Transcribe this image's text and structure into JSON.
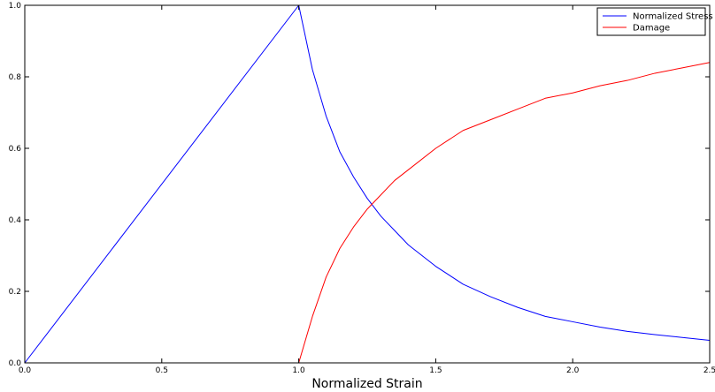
{
  "chart_data": {
    "type": "line",
    "xlabel": "Normalized Strain",
    "ylabel": "",
    "xlim": [
      0.0,
      2.5
    ],
    "ylim": [
      0.0,
      1.0
    ],
    "x_ticks": [
      "0.0",
      "0.5",
      "1.0",
      "1.5",
      "2.0",
      "2.5"
    ],
    "y_ticks": [
      "0.0",
      "0.2",
      "0.4",
      "0.6",
      "0.8",
      "1.0"
    ],
    "grid": false,
    "legend_position": "top-right",
    "series": [
      {
        "name": "Normalized Stress",
        "color": "#0000ff",
        "x": [
          0.0,
          1.0,
          1.05,
          1.1,
          1.15,
          1.2,
          1.25,
          1.3,
          1.35,
          1.4,
          1.5,
          1.6,
          1.7,
          1.8,
          1.9,
          2.0,
          2.1,
          2.2,
          2.3,
          2.4,
          2.5
        ],
        "y": [
          0.0,
          1.0,
          0.82,
          0.69,
          0.59,
          0.52,
          0.46,
          0.41,
          0.37,
          0.33,
          0.27,
          0.22,
          0.185,
          0.155,
          0.13,
          0.115,
          0.1,
          0.088,
          0.079,
          0.071,
          0.063
        ]
      },
      {
        "name": "Damage",
        "color": "#ff0000",
        "x": [
          0.0,
          1.0,
          1.05,
          1.1,
          1.15,
          1.2,
          1.25,
          1.3,
          1.35,
          1.4,
          1.5,
          1.6,
          1.7,
          1.8,
          1.9,
          2.0,
          2.1,
          2.2,
          2.3,
          2.4,
          2.5
        ],
        "y": [
          0.0,
          0.0,
          0.13,
          0.24,
          0.32,
          0.38,
          0.43,
          0.47,
          0.51,
          0.54,
          0.6,
          0.65,
          0.68,
          0.71,
          0.74,
          0.755,
          0.775,
          0.79,
          0.81,
          0.825,
          0.84
        ]
      }
    ]
  }
}
